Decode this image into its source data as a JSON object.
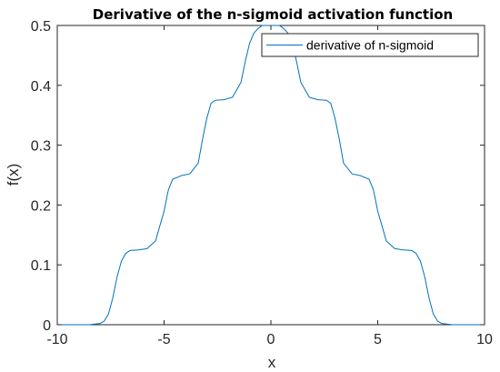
{
  "chart_data": {
    "type": "line",
    "title": "Derivative of the n-sigmoid activation function",
    "xlabel": "x",
    "ylabel": "f(x)",
    "xlim": [
      -10,
      10
    ],
    "ylim": [
      0,
      0.5
    ],
    "x_ticks": [
      "-10",
      "-5",
      "0",
      "5",
      "10"
    ],
    "y_ticks": [
      "0",
      "0.1",
      "0.2",
      "0.3",
      "0.4",
      "0.5"
    ],
    "grid": false,
    "legend_position": "top-right",
    "series": [
      {
        "name": "derivative of n-sigmoid",
        "color": "#0072BD",
        "x": [
          -10,
          -8.5,
          -8,
          -7.8,
          -7.6,
          -7.4,
          -7.2,
          -7.0,
          -6.8,
          -6.6,
          -6.2,
          -5.8,
          -5.4,
          -5.2,
          -5.0,
          -4.8,
          -4.6,
          -4.2,
          -3.8,
          -3.4,
          -3.2,
          -3.0,
          -2.8,
          -2.6,
          -2.2,
          -1.8,
          -1.4,
          -1.2,
          -1.0,
          -0.8,
          -0.6,
          -0.4,
          -0.2,
          0,
          0.2,
          0.4,
          0.6,
          0.8,
          1.0,
          1.2,
          1.4,
          1.8,
          2.2,
          2.6,
          2.8,
          3.0,
          3.2,
          3.4,
          3.8,
          4.2,
          4.6,
          4.8,
          5.0,
          5.2,
          5.4,
          5.8,
          6.2,
          6.6,
          6.8,
          7.0,
          7.2,
          7.4,
          7.6,
          7.8,
          8,
          8.5,
          10
        ],
        "y": [
          0,
          0,
          0.002,
          0.006,
          0.018,
          0.045,
          0.08,
          0.106,
          0.119,
          0.124,
          0.125,
          0.127,
          0.14,
          0.165,
          0.19,
          0.225,
          0.243,
          0.249,
          0.252,
          0.27,
          0.31,
          0.345,
          0.37,
          0.375,
          0.376,
          0.38,
          0.405,
          0.44,
          0.47,
          0.487,
          0.495,
          0.5,
          0.5,
          0.5,
          0.5,
          0.5,
          0.495,
          0.487,
          0.47,
          0.44,
          0.405,
          0.38,
          0.376,
          0.375,
          0.37,
          0.345,
          0.31,
          0.27,
          0.252,
          0.249,
          0.243,
          0.225,
          0.19,
          0.165,
          0.14,
          0.127,
          0.125,
          0.124,
          0.119,
          0.106,
          0.08,
          0.045,
          0.018,
          0.006,
          0.002,
          0,
          0
        ]
      }
    ]
  }
}
